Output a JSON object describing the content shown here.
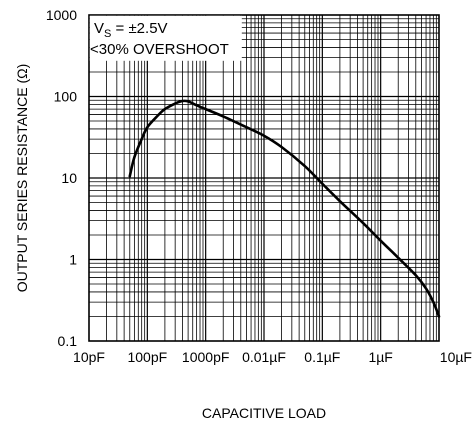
{
  "chart_data": {
    "type": "line",
    "xscale": "log",
    "yscale": "log",
    "xlim": [
      1e-11,
      1e-05
    ],
    "ylim": [
      0.1,
      1000
    ],
    "xlabel": "CAPACITIVE LOAD",
    "ylabel": "OUTPUT SERIES RESISTANCE (Ω)",
    "grid": true,
    "x_ticks": [
      {
        "value": 1e-11,
        "label": "10pF"
      },
      {
        "value": 1e-10,
        "label": "100pF"
      },
      {
        "value": 1e-09,
        "label": "1000pF"
      },
      {
        "value": 1e-08,
        "label": "0.01µF"
      },
      {
        "value": 1e-07,
        "label": "0.1µF"
      },
      {
        "value": 1e-06,
        "label": "1µF"
      },
      {
        "value": 1e-05,
        "label": "10µF"
      }
    ],
    "y_ticks": [
      {
        "value": 0.1,
        "label": "0.1"
      },
      {
        "value": 1,
        "label": "1"
      },
      {
        "value": 10,
        "label": "10"
      },
      {
        "value": 100,
        "label": "100"
      },
      {
        "value": 1000,
        "label": "1000"
      }
    ],
    "annotation": {
      "line1_main": "V",
      "line1_sub": "S",
      "line1_rest": " = ±2.5V",
      "line2": "<30% OVERSHOOT"
    },
    "series": [
      {
        "x": [
          5e-11,
          6e-11,
          8e-11,
          1e-10,
          1.5e-10,
          2e-10,
          3e-10,
          4e-10,
          5e-10,
          7e-10,
          1e-09,
          2e-09,
          5e-09,
          1e-08,
          2e-08,
          5e-08,
          1e-07,
          2e-07,
          5e-07,
          1e-06,
          2e-06,
          4e-06,
          6e-06,
          8e-06,
          1e-05
        ],
        "y": [
          10.5,
          18,
          30,
          42,
          58,
          70,
          82,
          88,
          87,
          78,
          70,
          57,
          42,
          33,
          24,
          14,
          8.5,
          5.2,
          2.8,
          1.7,
          1.05,
          0.64,
          0.44,
          0.3,
          0.2
        ]
      }
    ]
  }
}
